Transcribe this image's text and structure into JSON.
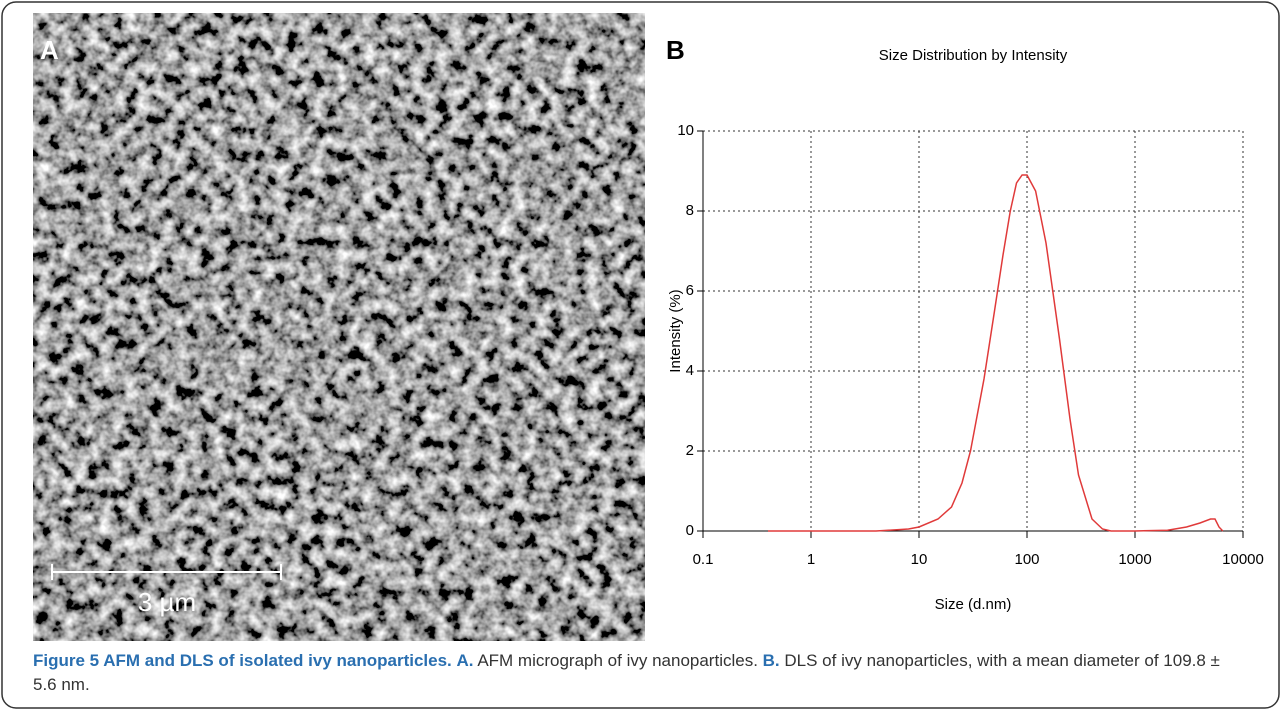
{
  "panels": {
    "a": {
      "label": "A",
      "scale_bar": "3 µm"
    },
    "b": {
      "label": "B"
    }
  },
  "chart_data": {
    "type": "line",
    "title": "Size Distribution by Intensity",
    "x_label": "Size (d.nm)",
    "y_label": "Intensity (%)",
    "x": [
      0.4,
      1,
      4,
      8,
      10,
      15,
      20,
      25,
      30,
      40,
      50,
      60,
      70,
      80,
      90,
      100,
      120,
      150,
      200,
      250,
      300,
      400,
      500,
      600,
      1000,
      2000,
      3000,
      4000,
      5000,
      5500,
      6000,
      6500
    ],
    "series": [
      {
        "name": "Intensity",
        "color": "#e03a3a",
        "values": [
          0,
          0,
          0,
          0.05,
          0.1,
          0.3,
          0.6,
          1.2,
          2,
          3.8,
          5.5,
          6.9,
          8,
          8.7,
          8.9,
          8.9,
          8.5,
          7.2,
          4.8,
          2.8,
          1.4,
          0.3,
          0.05,
          0,
          0,
          0.02,
          0.1,
          0.2,
          0.3,
          0.3,
          0.1,
          0
        ]
      }
    ],
    "xlim": [
      0.1,
      10000
    ],
    "xticks": [
      0.1,
      1,
      10,
      100,
      1000,
      10000
    ],
    "x_log": true,
    "ylim": [
      0,
      10
    ],
    "yticks": [
      0,
      2,
      4,
      6,
      8,
      10
    ],
    "grid": true
  },
  "caption": {
    "figure": "Figure 5 AFM and DLS of isolated ivy nanoparticles.",
    "a_label": "A.",
    "a_text": "AFM micrograph of ivy nanoparticles.",
    "b_label": "B.",
    "b_text": "DLS of ivy nanoparticles, with a mean diameter of 109.8 ± 5.6 nm."
  }
}
